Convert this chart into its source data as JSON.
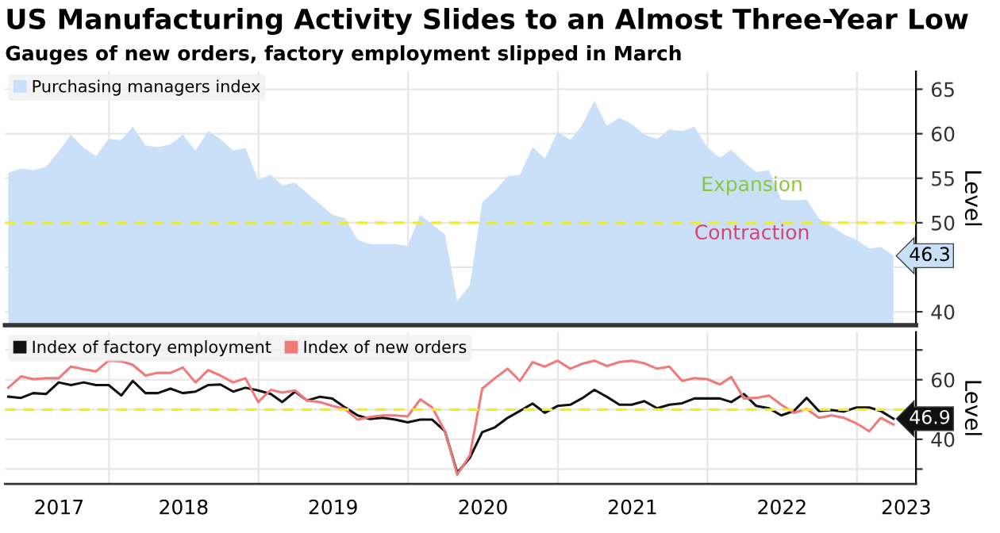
{
  "chart_data": [
    {
      "type": "area",
      "title": "US Manufacturing Activity Slides to an Almost Three-Year Low",
      "subtitle": "Gauges of new orders, factory employment slipped in March",
      "ylabel": "Level",
      "x": [
        "2017-04-30",
        "2017-05-31",
        "2017-06-30",
        "2017-07-31",
        "2017-08-31",
        "2017-09-30",
        "2017-10-31",
        "2017-11-30",
        "2017-12-31",
        "2018-01-31",
        "2018-02-28",
        "2018-03-31",
        "2018-04-30",
        "2018-05-31",
        "2018-06-30",
        "2018-07-31",
        "2018-08-31",
        "2018-09-30",
        "2018-10-31",
        "2018-11-30",
        "2018-12-31",
        "2019-01-31",
        "2019-02-28",
        "2019-03-31",
        "2019-04-30",
        "2019-05-31",
        "2019-06-30",
        "2019-07-31",
        "2019-08-31",
        "2019-09-30",
        "2019-10-31",
        "2019-11-30",
        "2019-12-31",
        "2020-01-31",
        "2020-02-29",
        "2020-03-31",
        "2020-04-30",
        "2020-05-31",
        "2020-06-30",
        "2020-07-31",
        "2020-08-31",
        "2020-09-30",
        "2020-10-31",
        "2020-11-30",
        "2020-12-31",
        "2021-01-31",
        "2021-02-28",
        "2021-03-31",
        "2021-04-30",
        "2021-05-31",
        "2021-06-30",
        "2021-07-31",
        "2021-08-31",
        "2021-09-30",
        "2021-10-31",
        "2021-11-30",
        "2021-12-31",
        "2022-01-31",
        "2022-02-28",
        "2022-03-31",
        "2022-04-30",
        "2022-05-31",
        "2022-06-30",
        "2022-07-31",
        "2022-08-31",
        "2022-09-30",
        "2022-10-31",
        "2022-11-30",
        "2022-12-31",
        "2023-01-31",
        "2023-02-28",
        "2023-03-31"
      ],
      "series": [
        {
          "name": "Purchasing managers index",
          "color": "#c9e0f8",
          "values": [
            55.6,
            56.1,
            55.9,
            56.3,
            58.0,
            59.9,
            58.4,
            57.5,
            59.4,
            59.3,
            60.8,
            58.7,
            58.5,
            58.8,
            59.9,
            58.1,
            60.3,
            59.4,
            58.1,
            58.4,
            54.8,
            55.4,
            54.2,
            54.5,
            53.3,
            52.1,
            50.9,
            50.5,
            48.1,
            47.6,
            47.6,
            47.6,
            47.4,
            50.9,
            49.8,
            48.7,
            41.2,
            43.0,
            52.3,
            53.6,
            55.2,
            55.4,
            58.5,
            57.2,
            60.2,
            59.3,
            60.9,
            63.7,
            60.9,
            61.8,
            61.1,
            59.9,
            59.4,
            60.5,
            60.3,
            60.8,
            58.5,
            57.3,
            58.2,
            56.8,
            55.7,
            55.9,
            52.6,
            52.5,
            52.6,
            50.5,
            49.6,
            48.7,
            48.1,
            47.1,
            47.3,
            46.3
          ],
          "value_labels": [
            null,
            null,
            null,
            null,
            null,
            null,
            null,
            null,
            null,
            null,
            null,
            null,
            null,
            null,
            null,
            null,
            null,
            null,
            null,
            null,
            null,
            null,
            null,
            null,
            null,
            null,
            null,
            null,
            null,
            null,
            null,
            null,
            null,
            null,
            null,
            null,
            null,
            null,
            null,
            null,
            null,
            null,
            null,
            null,
            null,
            null,
            null,
            null,
            null,
            null,
            null,
            null,
            null,
            null,
            null,
            null,
            null,
            null,
            null,
            null,
            null,
            null,
            null,
            null,
            null,
            null,
            null,
            null,
            null,
            null,
            null,
            "46.3"
          ]
        }
      ],
      "xlim": [
        "2017-04-22",
        "2023-05-25"
      ],
      "xticks": [
        {
          "value": "2018-01-01",
          "label": null
        },
        {
          "value": "2019-01-01",
          "label": null
        },
        {
          "value": "2020-01-01",
          "label": null
        },
        {
          "value": "2021-01-01",
          "label": null
        },
        {
          "value": "2022-01-01",
          "label": null
        },
        {
          "value": "2023-01-01",
          "label": null
        }
      ],
      "ylim": [
        38.5,
        67
      ],
      "yticks": [
        40,
        {
          "value": 45,
          "label": null
        },
        50,
        55,
        60,
        65
      ],
      "ref_lines": [
        {
          "axis": "y",
          "value": 50,
          "color": "#f2ee1c",
          "line_style": "dashed"
        }
      ],
      "annotations": [
        "Expansion",
        "Contraction"
      ],
      "grid": true,
      "legend": "top left",
      "tick_labels": "y"
    },
    {
      "type": "line",
      "ylabel": "Level",
      "x": [
        "2017-04-30",
        "2017-05-31",
        "2017-06-30",
        "2017-07-31",
        "2017-08-31",
        "2017-09-30",
        "2017-10-31",
        "2017-11-30",
        "2017-12-31",
        "2018-01-31",
        "2018-02-28",
        "2018-03-31",
        "2018-04-30",
        "2018-05-31",
        "2018-06-30",
        "2018-07-31",
        "2018-08-31",
        "2018-09-30",
        "2018-10-31",
        "2018-11-30",
        "2018-12-31",
        "2019-01-31",
        "2019-02-28",
        "2019-03-31",
        "2019-04-30",
        "2019-05-31",
        "2019-06-30",
        "2019-07-31",
        "2019-08-31",
        "2019-09-30",
        "2019-10-31",
        "2019-11-30",
        "2019-12-31",
        "2020-01-31",
        "2020-02-29",
        "2020-03-31",
        "2020-04-30",
        "2020-05-31",
        "2020-06-30",
        "2020-07-31",
        "2020-08-31",
        "2020-09-30",
        "2020-10-31",
        "2020-11-30",
        "2020-12-31",
        "2021-01-31",
        "2021-02-28",
        "2021-03-31",
        "2021-04-30",
        "2021-05-31",
        "2021-06-30",
        "2021-07-31",
        "2021-08-31",
        "2021-09-30",
        "2021-10-31",
        "2021-11-30",
        "2021-12-31",
        "2022-01-31",
        "2022-02-28",
        "2022-03-31",
        "2022-04-30",
        "2022-05-31",
        "2022-06-30",
        "2022-07-31",
        "2022-08-31",
        "2022-09-30",
        "2022-10-31",
        "2022-11-30",
        "2022-12-31",
        "2023-01-31",
        "2023-02-28",
        "2023-03-31"
      ],
      "series": [
        {
          "name": "Index of factory employment",
          "color": "#111111",
          "values": [
            54.3,
            53.9,
            55.5,
            55.2,
            59.1,
            58.2,
            59.1,
            58.2,
            58.2,
            54.7,
            59.6,
            55.5,
            55.5,
            57.0,
            55.5,
            56.0,
            58.2,
            58.4,
            56.0,
            57.3,
            56.4,
            55.2,
            52.5,
            56.0,
            53.0,
            54.3,
            53.7,
            50.7,
            48.0,
            46.8,
            47.2,
            46.6,
            45.7,
            46.6,
            46.6,
            42.7,
            28.8,
            33.8,
            42.4,
            44.0,
            47.2,
            49.5,
            52.0,
            48.9,
            51.2,
            51.6,
            53.7,
            56.6,
            54.3,
            51.6,
            51.6,
            52.8,
            50.4,
            51.6,
            52.1,
            53.7,
            53.7,
            53.7,
            52.5,
            55.2,
            51.2,
            50.4,
            48.0,
            49.5,
            53.9,
            49.5,
            49.8,
            49.3,
            50.7,
            50.7,
            49.5,
            46.9
          ],
          "value_labels": [
            null,
            null,
            null,
            null,
            null,
            null,
            null,
            null,
            null,
            null,
            null,
            null,
            null,
            null,
            null,
            null,
            null,
            null,
            null,
            null,
            null,
            null,
            null,
            null,
            null,
            null,
            null,
            null,
            null,
            null,
            null,
            null,
            null,
            null,
            null,
            null,
            null,
            null,
            null,
            null,
            null,
            null,
            null,
            null,
            null,
            null,
            null,
            null,
            null,
            null,
            null,
            null,
            null,
            null,
            null,
            null,
            null,
            null,
            null,
            null,
            null,
            null,
            null,
            null,
            null,
            null,
            null,
            null,
            null,
            null,
            null,
            "46.9"
          ]
        },
        {
          "name": "Index of new orders",
          "color": "#f07a7a",
          "values": [
            57.3,
            61.1,
            60.2,
            60.5,
            60.5,
            64.4,
            63.5,
            62.8,
            66.4,
            66.2,
            65.0,
            61.4,
            62.3,
            62.3,
            64.1,
            59.1,
            63.2,
            61.4,
            59.1,
            60.5,
            52.5,
            56.6,
            55.7,
            56.4,
            53.0,
            52.5,
            51.2,
            50.2,
            46.6,
            47.5,
            48.0,
            48.0,
            47.7,
            53.4,
            50.7,
            42.7,
            28.1,
            34.7,
            57.0,
            60.5,
            63.7,
            59.6,
            65.9,
            64.4,
            66.4,
            63.7,
            65.3,
            66.4,
            64.6,
            65.9,
            66.4,
            65.5,
            63.7,
            64.4,
            59.6,
            60.5,
            60.2,
            58.4,
            60.9,
            53.7,
            53.9,
            54.7,
            51.6,
            48.9,
            50.2,
            47.2,
            48.0,
            47.2,
            45.3,
            42.7,
            47.2,
            45.0
          ]
        }
      ],
      "xlim": [
        "2017-04-22",
        "2023-05-25"
      ],
      "xticks": [
        {
          "value": "2018-01-01",
          "label": null
        },
        {
          "value": "2019-01-01",
          "label": null
        },
        {
          "value": "2020-01-01",
          "label": null
        },
        {
          "value": "2021-01-01",
          "label": null
        },
        {
          "value": "2022-01-01",
          "label": null
        },
        {
          "value": "2023-01-01",
          "label": null
        },
        {
          "value": "2017-09-01",
          "label": "2017"
        },
        {
          "value": "2018-07-02",
          "label": "2018"
        },
        {
          "value": "2019-07-02",
          "label": "2019"
        },
        {
          "value": "2020-07-02",
          "label": "2020"
        },
        {
          "value": "2021-07-02",
          "label": "2021"
        },
        {
          "value": "2022-07-02",
          "label": "2022"
        },
        {
          "value": "2023-05-01",
          "label": "2023"
        }
      ],
      "ylim": [
        25,
        76
      ],
      "yticks": [
        {
          "value": 30,
          "label": null
        },
        40,
        {
          "value": 50,
          "label": null
        },
        60,
        {
          "value": 70,
          "label": null
        }
      ],
      "ref_lines": [
        {
          "axis": "y",
          "value": 50,
          "color": "#f2ee1c",
          "line_style": "dashed"
        }
      ],
      "grid": true,
      "legend": "top left",
      "line_style": "solid"
    }
  ]
}
